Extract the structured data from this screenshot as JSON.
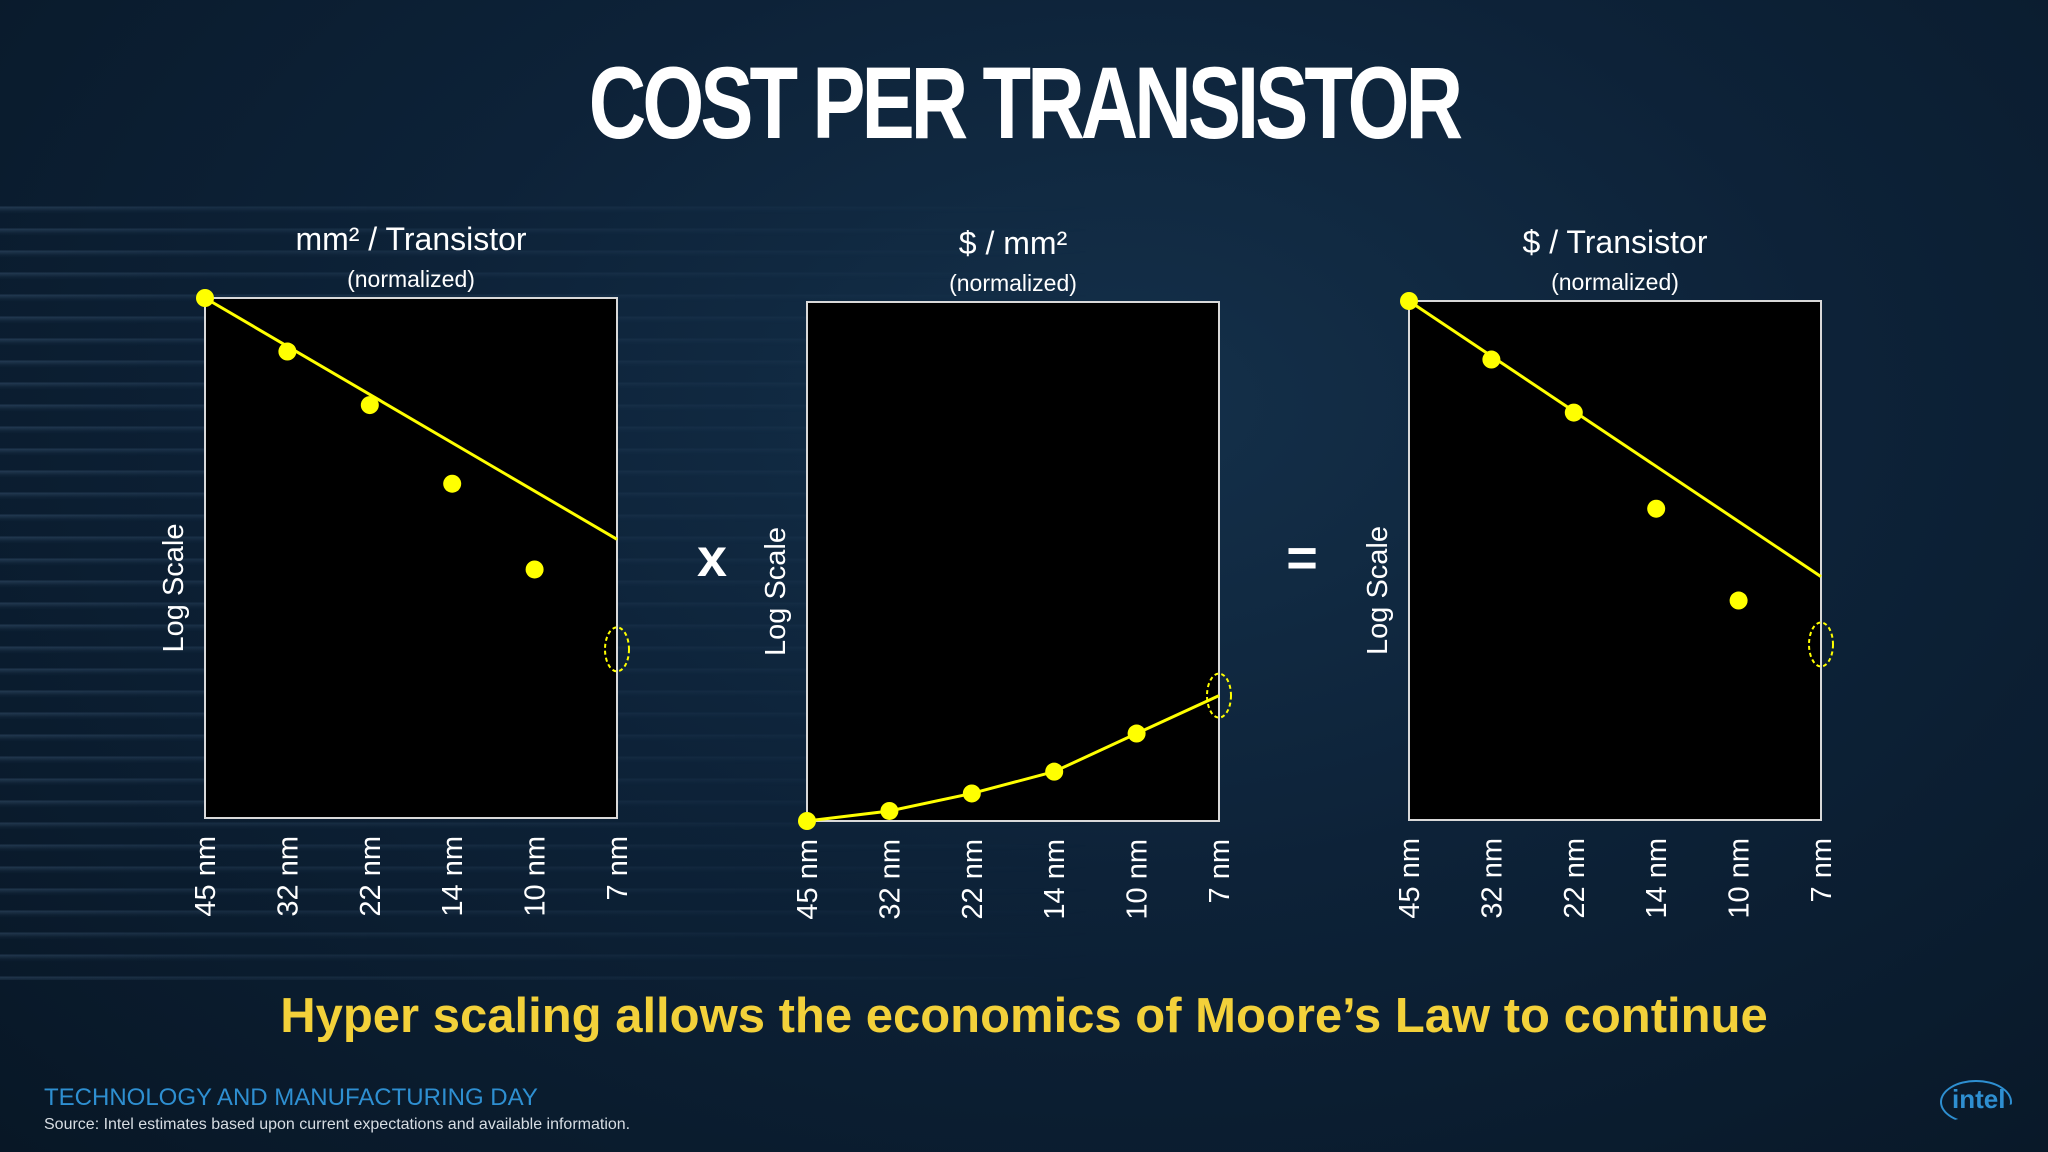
{
  "title": "COST PER TRANSISTOR",
  "operators": {
    "times": "x",
    "equals": "="
  },
  "tagline": "Hyper scaling allows the economics of Moore’s Law to continue",
  "footer": {
    "event": "TECHNOLOGY AND MANUFACTURING DAY",
    "source": "Source: Intel estimates based upon current expectations and available information.",
    "logo": "intel"
  },
  "colors": {
    "series": "#ffff00",
    "plot_background": "#000000",
    "tagline": "#f3d13a",
    "footer_accent": "#2e8fd1"
  },
  "chart_data": [
    {
      "type": "line",
      "title": "mm² / Transistor",
      "subtitle": "(normalized)",
      "ylabel": "Log Scale",
      "y_scale": "log",
      "categories": [
        "45 nm",
        "32 nm",
        "22 nm",
        "14 nm",
        "10 nm",
        "7 nm"
      ],
      "points": [
        1.0,
        0.6,
        0.36,
        0.17,
        0.075,
        null
      ],
      "trend": [
        1.0,
        0.1
      ],
      "highlight_at": "7 nm",
      "highlight_value": 0.035,
      "ylim": [
        0.007,
        1.0
      ]
    },
    {
      "type": "line",
      "title": "$ / mm²",
      "subtitle": "(normalized)",
      "ylabel": "Log Scale",
      "y_scale": "log",
      "categories": [
        "45 nm",
        "32 nm",
        "22 nm",
        "14 nm",
        "10 nm",
        "7 nm"
      ],
      "points": [
        1.0,
        1.1,
        1.3,
        1.6,
        2.3,
        null
      ],
      "trend_line_through_points": true,
      "highlight_at": "7 nm",
      "highlight_value": 3.3,
      "ylim": [
        1.0,
        140
      ]
    },
    {
      "type": "line",
      "title": "$ / Transistor",
      "subtitle": "(normalized)",
      "ylabel": "Log Scale",
      "y_scale": "log",
      "categories": [
        "45 nm",
        "32 nm",
        "22 nm",
        "14 nm",
        "10 nm",
        "7 nm"
      ],
      "points": [
        1.0,
        0.55,
        0.32,
        0.12,
        0.047,
        null
      ],
      "trend": [
        1.0,
        0.06
      ],
      "highlight_at": "7 nm",
      "highlight_value": 0.03,
      "ylim": [
        0.005,
        1.0
      ]
    }
  ]
}
